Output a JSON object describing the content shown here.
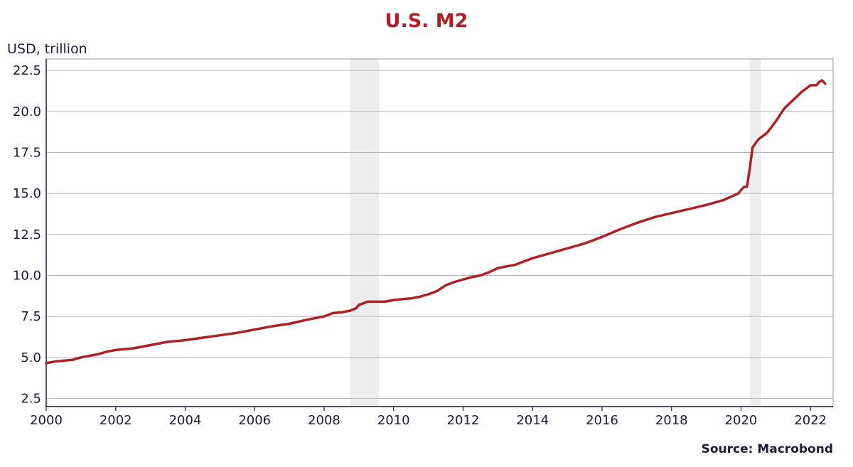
{
  "chart_data": {
    "type": "line",
    "title": "U.S. M2",
    "ylabel": "USD, trillion",
    "xlabel": "",
    "source": "Source: Macrobond",
    "ylim": [
      2.0,
      23.2
    ],
    "xlim": [
      2000.0,
      2022.65
    ],
    "yticks": [
      "2.5",
      "5.0",
      "7.5",
      "10.0",
      "12.5",
      "15.0",
      "17.5",
      "20.0",
      "22.5"
    ],
    "xticks": [
      "2000",
      "2002",
      "2004",
      "2006",
      "2008",
      "2010",
      "2012",
      "2014",
      "2016",
      "2018",
      "2020",
      "2022"
    ],
    "grid": "horizontal",
    "recession_shading": [
      [
        2008.75,
        2009.58
      ],
      [
        2020.25,
        2020.58
      ]
    ],
    "line_color": "#b01f24",
    "shade_color": "#ededed",
    "series": [
      {
        "x": [
          2000.0,
          2000.25,
          2000.5,
          2000.75,
          2001.0,
          2001.25,
          2001.5,
          2001.75,
          2002.0,
          2002.5,
          2003.0,
          2003.5,
          2004.0,
          2004.5,
          2005.0,
          2005.5,
          2006.0,
          2006.5,
          2007.0,
          2007.5,
          2008.0,
          2008.25,
          2008.5,
          2008.75,
          2008.92,
          2009.0,
          2009.25,
          2009.5,
          2009.75,
          2010.0,
          2010.25,
          2010.5,
          2010.75,
          2011.0,
          2011.25,
          2011.5,
          2011.75,
          2012.0,
          2012.25,
          2012.5,
          2012.75,
          2013.0,
          2013.5,
          2014.0,
          2014.5,
          2015.0,
          2015.5,
          2016.0,
          2016.5,
          2017.0,
          2017.5,
          2018.0,
          2018.5,
          2019.0,
          2019.5,
          2019.92,
          2020.08,
          2020.17,
          2020.25,
          2020.33,
          2020.5,
          2020.75,
          2021.0,
          2021.25,
          2021.5,
          2021.75,
          2022.0,
          2022.17,
          2022.25,
          2022.33,
          2022.42
        ],
        "y": [
          4.65,
          4.75,
          4.8,
          4.85,
          5.0,
          5.1,
          5.2,
          5.35,
          5.45,
          5.55,
          5.75,
          5.95,
          6.05,
          6.2,
          6.35,
          6.5,
          6.7,
          6.9,
          7.05,
          7.3,
          7.5,
          7.7,
          7.75,
          7.85,
          8.0,
          8.2,
          8.4,
          8.4,
          8.4,
          8.5,
          8.55,
          8.6,
          8.7,
          8.85,
          9.05,
          9.4,
          9.6,
          9.75,
          9.9,
          10.0,
          10.2,
          10.45,
          10.65,
          11.05,
          11.35,
          11.65,
          11.95,
          12.35,
          12.8,
          13.2,
          13.55,
          13.8,
          14.05,
          14.3,
          14.6,
          15.0,
          15.4,
          15.4,
          16.5,
          17.8,
          18.3,
          18.7,
          19.4,
          20.2,
          20.7,
          21.2,
          21.6,
          21.6,
          21.8,
          21.9,
          21.7
        ]
      }
    ]
  }
}
